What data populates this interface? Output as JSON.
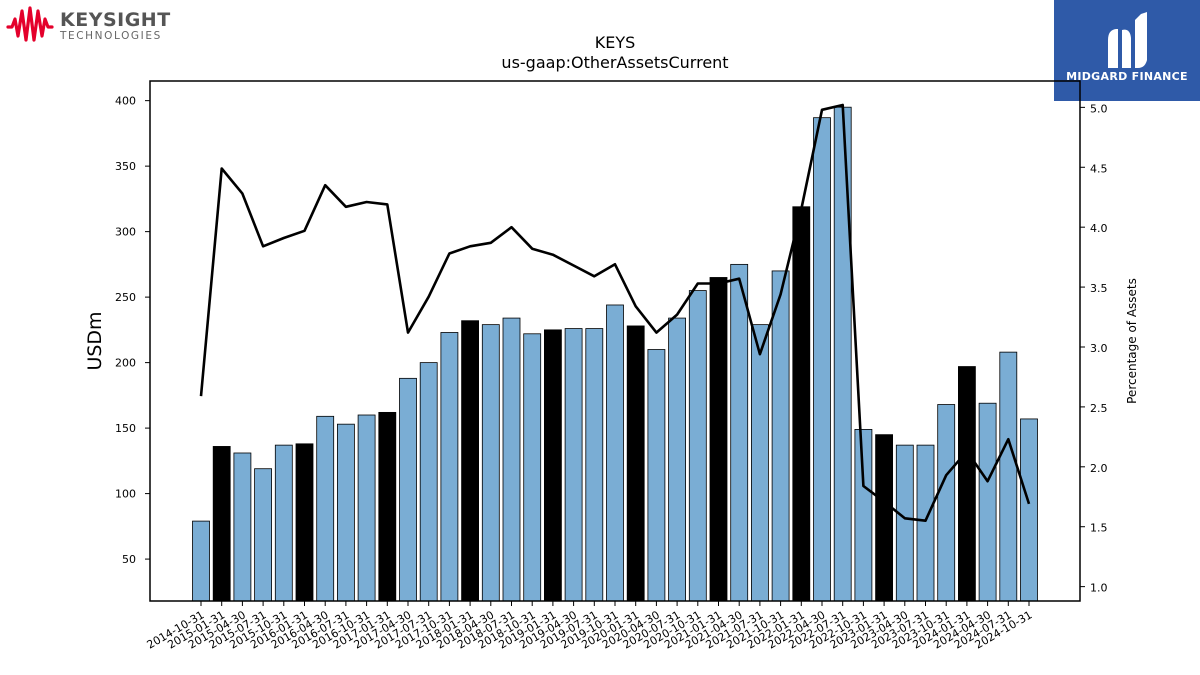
{
  "logos": {
    "left": {
      "name": "KEYSIGHT",
      "sub": "TECHNOLOGIES",
      "color": "#e4002b"
    },
    "right": {
      "name": "MIDGARD FINANCE",
      "bg": "#2f5aa8"
    }
  },
  "chart_data": {
    "type": "bar",
    "title": "KEYS",
    "subtitle": "us-gaap:OtherAssetsCurrent",
    "ylabel": "USDm",
    "y2label": "Percentage of Assets",
    "ylim": [
      18,
      415
    ],
    "y2lim": [
      0.88,
      5.22
    ],
    "yticks": [
      50,
      100,
      150,
      200,
      250,
      300,
      350,
      400
    ],
    "y2ticks": [
      1.0,
      1.5,
      2.0,
      2.5,
      3.0,
      3.5,
      4.0,
      4.5,
      5.0
    ],
    "grid": false,
    "bar_color": "#7aadd4",
    "highlight_color": "#000000",
    "line_color": "#000000",
    "categories": [
      "2014-10-31",
      "2015-01-31",
      "2015-04-30",
      "2015-07-31",
      "2015-10-31",
      "2016-01-31",
      "2016-04-30",
      "2016-07-31",
      "2016-10-31",
      "2017-01-31",
      "2017-04-30",
      "2017-07-31",
      "2017-10-31",
      "2018-01-31",
      "2018-04-30",
      "2018-07-31",
      "2018-10-31",
      "2019-01-31",
      "2019-04-30",
      "2019-07-31",
      "2019-10-31",
      "2020-01-31",
      "2020-04-30",
      "2020-07-31",
      "2020-10-31",
      "2021-01-31",
      "2021-04-30",
      "2021-07-31",
      "2021-10-31",
      "2022-01-31",
      "2022-04-30",
      "2022-07-31",
      "2022-10-31",
      "2023-01-31",
      "2023-04-30",
      "2023-07-31",
      "2023-10-31",
      "2024-01-31",
      "2024-04-30",
      "2024-07-31",
      "2024-10-31"
    ],
    "series": [
      {
        "type": "bar",
        "values": [
          79,
          136,
          131,
          119,
          137,
          138,
          159,
          153,
          160,
          162,
          188,
          200,
          223,
          232,
          229,
          234,
          222,
          225,
          226,
          226,
          244,
          228,
          210,
          234,
          255,
          265,
          275,
          229,
          270,
          319,
          387,
          395,
          149,
          145,
          137,
          137,
          168,
          197,
          169,
          208,
          157
        ],
        "highlight": [
          false,
          true,
          false,
          false,
          false,
          true,
          false,
          false,
          false,
          true,
          false,
          false,
          false,
          true,
          false,
          false,
          false,
          true,
          false,
          false,
          false,
          true,
          false,
          false,
          false,
          true,
          false,
          false,
          false,
          true,
          false,
          false,
          false,
          true,
          false,
          false,
          false,
          true,
          false,
          false,
          false
        ]
      },
      {
        "type": "line",
        "axis": "right",
        "values": [
          2.59,
          4.49,
          4.28,
          3.84,
          3.91,
          3.97,
          4.35,
          4.17,
          4.21,
          4.19,
          3.12,
          3.42,
          3.78,
          3.84,
          3.87,
          4.0,
          3.82,
          3.77,
          3.68,
          3.59,
          3.69,
          3.34,
          3.12,
          3.27,
          3.53,
          3.53,
          3.57,
          2.94,
          3.44,
          4.15,
          4.98,
          5.02,
          1.84,
          1.71,
          1.57,
          1.55,
          1.93,
          2.13,
          1.88,
          2.23,
          1.69
        ]
      }
    ]
  }
}
